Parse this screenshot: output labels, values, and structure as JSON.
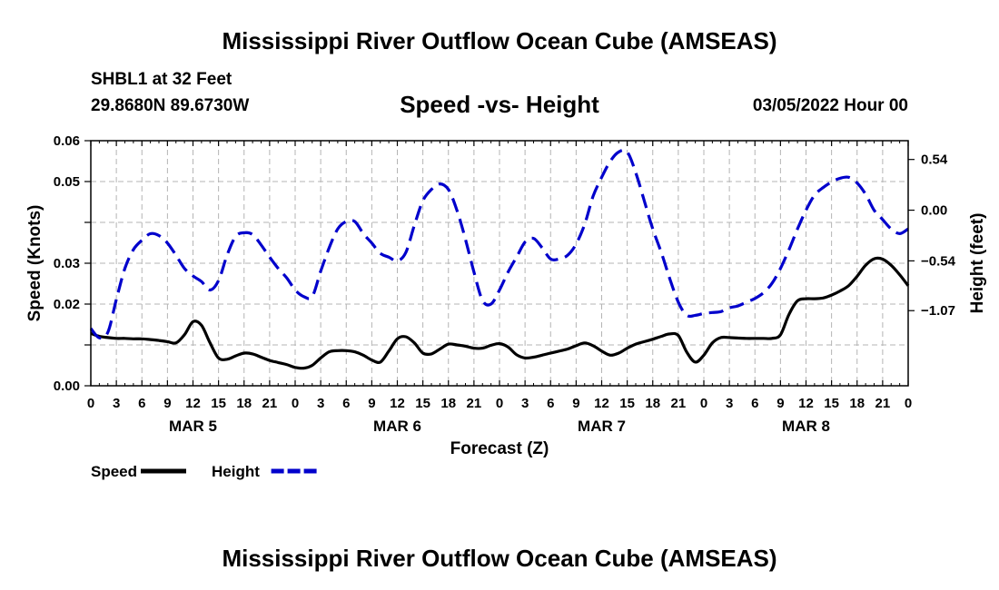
{
  "page": {
    "title": "Mississippi River Outflow Ocean Cube (AMSEAS)",
    "bottom_title": "Mississippi River Outflow Ocean Cube (AMSEAS)",
    "station": "SHBL1 at 32 Feet",
    "location": "29.8680N  89.6730W",
    "date": "03/05/2022 Hour 00"
  },
  "chart_data": {
    "type": "line",
    "title": "Speed -vs- Height",
    "xlabel": "Forecast (Z)",
    "ylabel_left": "Speed (Knots)",
    "ylabel_right": "Height (feet)",
    "x_unit": "forecast hour",
    "xlim": [
      0,
      96
    ],
    "x_ticks": [
      0,
      3,
      6,
      9,
      12,
      15,
      18,
      21,
      24,
      27,
      30,
      33,
      36,
      39,
      42,
      45,
      48,
      51,
      54,
      57,
      60,
      63,
      66,
      69,
      72,
      75,
      78,
      81,
      84,
      87,
      90,
      93,
      96
    ],
    "x_tick_labels": [
      "0",
      "3",
      "6",
      "9",
      "12",
      "15",
      "18",
      "21",
      "0",
      "3",
      "6",
      "9",
      "12",
      "15",
      "18",
      "21",
      "0",
      "3",
      "6",
      "9",
      "12",
      "15",
      "18",
      "21",
      "0",
      "3",
      "6",
      "9",
      "12",
      "15",
      "18",
      "21",
      "0"
    ],
    "day_labels": [
      {
        "label": "MAR 5",
        "x": 12
      },
      {
        "label": "MAR 6",
        "x": 36
      },
      {
        "label": "MAR 7",
        "x": 60
      },
      {
        "label": "MAR 8",
        "x": 84
      }
    ],
    "ylim_left": [
      0,
      0.06
    ],
    "y_ticks_left": [
      0,
      0.01,
      0.02,
      0.03,
      0.04,
      0.05,
      0.06
    ],
    "y_tick_labels_left": [
      "0.00",
      "",
      "0.02",
      "0.03",
      "",
      "0.05",
      "0.06"
    ],
    "ylim_right": [
      -1.87,
      0.74
    ],
    "y_ticks_right": [
      -1.07,
      -0.54,
      0.0,
      0.54
    ],
    "y_tick_labels_right": [
      "−1.07",
      "−0.54",
      "0.00",
      "0.54"
    ],
    "grid": true,
    "series": [
      {
        "name": "Speed",
        "axis": "left",
        "color": "#000000",
        "dash": "solid",
        "x": [
          0,
          1,
          2,
          3,
          4,
          5,
          6,
          7,
          8,
          9,
          10,
          11,
          12,
          13,
          14,
          15,
          16,
          17,
          18,
          19,
          20,
          21,
          22,
          23,
          24,
          25,
          26,
          27,
          28,
          29,
          30,
          31,
          32,
          33,
          34,
          35,
          36,
          37,
          38,
          39,
          40,
          41,
          42,
          43,
          44,
          45,
          46,
          47,
          48,
          49,
          50,
          51,
          52,
          53,
          54,
          55,
          56,
          57,
          58,
          59,
          60,
          61,
          62,
          63,
          64,
          65,
          66,
          67,
          68,
          69,
          70,
          71,
          72,
          73,
          74,
          75,
          76,
          77,
          78,
          79,
          80,
          81,
          82,
          83,
          84,
          85,
          86,
          87,
          88,
          89,
          90,
          91,
          92,
          93,
          94,
          95,
          96
        ],
        "values": [
          0.0128,
          0.0121,
          0.0118,
          0.0116,
          0.0116,
          0.0115,
          0.0115,
          0.0113,
          0.0111,
          0.0108,
          0.0105,
          0.0125,
          0.0157,
          0.0148,
          0.0105,
          0.0068,
          0.0065,
          0.0073,
          0.008,
          0.0078,
          0.007,
          0.0062,
          0.0057,
          0.0052,
          0.0045,
          0.0043,
          0.005,
          0.0068,
          0.0083,
          0.0086,
          0.0086,
          0.0083,
          0.0075,
          0.0063,
          0.0058,
          0.0085,
          0.0115,
          0.012,
          0.0105,
          0.008,
          0.0078,
          0.009,
          0.0102,
          0.01,
          0.0097,
          0.0092,
          0.0092,
          0.0099,
          0.0103,
          0.0095,
          0.0076,
          0.0068,
          0.007,
          0.0075,
          0.008,
          0.0085,
          0.009,
          0.0098,
          0.0105,
          0.0098,
          0.0085,
          0.0075,
          0.008,
          0.0092,
          0.0102,
          0.0108,
          0.0114,
          0.0121,
          0.0127,
          0.0123,
          0.0082,
          0.0058,
          0.0075,
          0.0105,
          0.0118,
          0.0118,
          0.0117,
          0.0116,
          0.0116,
          0.0116,
          0.0116,
          0.0125,
          0.0175,
          0.0208,
          0.0213,
          0.0213,
          0.0215,
          0.0222,
          0.0232,
          0.0245,
          0.0268,
          0.0295,
          0.0311,
          0.031,
          0.0295,
          0.0272,
          0.0245
        ]
      },
      {
        "name": "Height",
        "axis": "right",
        "color": "#0000cc",
        "dash": "dashed",
        "x": [
          0,
          1,
          2,
          3,
          4,
          5,
          6,
          7,
          8,
          9,
          10,
          11,
          12,
          13,
          14,
          15,
          16,
          17,
          18,
          19,
          20,
          21,
          22,
          23,
          24,
          25,
          26,
          27,
          28,
          29,
          30,
          31,
          32,
          33,
          34,
          35,
          36,
          37,
          38,
          39,
          40,
          41,
          42,
          43,
          44,
          45,
          46,
          47,
          48,
          49,
          50,
          51,
          52,
          53,
          54,
          55,
          56,
          57,
          58,
          59,
          60,
          61,
          62,
          63,
          64,
          65,
          66,
          67,
          68,
          69,
          70,
          71,
          72,
          73,
          74,
          75,
          76,
          77,
          78,
          79,
          80,
          81,
          82,
          83,
          84,
          85,
          86,
          87,
          88,
          89,
          90,
          91,
          92,
          93,
          94,
          95,
          96
        ],
        "values": [
          -1.26,
          -1.36,
          -1.3,
          -0.95,
          -0.62,
          -0.42,
          -0.32,
          -0.25,
          -0.27,
          -0.35,
          -0.48,
          -0.62,
          -0.7,
          -0.76,
          -0.85,
          -0.75,
          -0.48,
          -0.28,
          -0.24,
          -0.26,
          -0.37,
          -0.5,
          -0.62,
          -0.72,
          -0.85,
          -0.92,
          -0.92,
          -0.65,
          -0.4,
          -0.2,
          -0.12,
          -0.12,
          -0.25,
          -0.35,
          -0.46,
          -0.5,
          -0.54,
          -0.45,
          -0.16,
          0.1,
          0.22,
          0.28,
          0.22,
          0.0,
          -0.31,
          -0.66,
          -0.96,
          -1.0,
          -0.85,
          -0.66,
          -0.5,
          -0.34,
          -0.3,
          -0.4,
          -0.52,
          -0.52,
          -0.48,
          -0.36,
          -0.15,
          0.15,
          0.35,
          0.52,
          0.62,
          0.62,
          0.4,
          0.1,
          -0.2,
          -0.45,
          -0.73,
          -0.98,
          -1.12,
          -1.12,
          -1.1,
          -1.09,
          -1.08,
          -1.04,
          -1.02,
          -0.98,
          -0.94,
          -0.88,
          -0.78,
          -0.62,
          -0.42,
          -0.2,
          0.0,
          0.16,
          0.24,
          0.3,
          0.34,
          0.35,
          0.29,
          0.17,
          0.0,
          -0.1,
          -0.2,
          -0.25,
          -0.2
        ]
      }
    ],
    "legend": [
      {
        "label": "Speed",
        "color": "#000000",
        "dash": "solid"
      },
      {
        "label": "Height",
        "color": "#0000cc",
        "dash": "dashed"
      }
    ],
    "legend_position": "bottom-left"
  }
}
